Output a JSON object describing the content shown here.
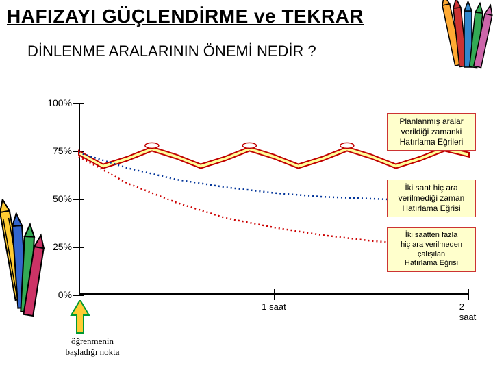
{
  "title": "HAFIZAYI GÜÇLENDİRME ve TEKRAR",
  "subtitle": "DİNLENME ARALARININ ÖNEMİ NEDİR ?",
  "chart": {
    "type": "line",
    "ylim": [
      0,
      100
    ],
    "xlim": [
      0,
      2
    ],
    "y_ticks": [
      0,
      25,
      50,
      75,
      100
    ],
    "y_labels": [
      "0%",
      "25%",
      "50%",
      "75%",
      "100%"
    ],
    "x_ticks": [
      1,
      2
    ],
    "x_labels": [
      "1 saat",
      "2 saat"
    ],
    "label_fontsize": 14,
    "background_color": "#ffffff",
    "axis_color": "#000000",
    "series": {
      "planned_breaks": {
        "color_stroke": "#c00000",
        "color_fill": "#ffff99",
        "stroke_width": 2,
        "style": "solid",
        "points": [
          [
            0.0,
            75
          ],
          [
            0.125,
            68
          ],
          [
            0.25,
            72
          ],
          [
            0.375,
            77
          ],
          [
            0.5,
            73
          ],
          [
            0.625,
            68
          ],
          [
            0.75,
            72
          ],
          [
            0.875,
            77
          ],
          [
            1.0,
            73
          ],
          [
            1.125,
            68
          ],
          [
            1.25,
            72
          ],
          [
            1.375,
            77
          ],
          [
            1.5,
            73
          ],
          [
            1.625,
            68
          ],
          [
            1.75,
            72
          ],
          [
            1.875,
            77
          ],
          [
            2.0,
            74
          ]
        ],
        "markers": [
          [
            0.375,
            77
          ],
          [
            0.875,
            77
          ],
          [
            1.375,
            77
          ],
          [
            1.875,
            77
          ]
        ]
      },
      "no_break_curve": {
        "color": "#003399",
        "stroke_width": 2,
        "style": "dotted",
        "points": [
          [
            0.0,
            74
          ],
          [
            0.25,
            66
          ],
          [
            0.5,
            60
          ],
          [
            0.75,
            56
          ],
          [
            1.0,
            53
          ],
          [
            1.25,
            51
          ],
          [
            1.5,
            50
          ],
          [
            1.75,
            49
          ],
          [
            2.0,
            48
          ]
        ]
      },
      "over_two_hours_curve": {
        "color": "#cc0000",
        "stroke_width": 2,
        "style": "dotted",
        "points": [
          [
            0.0,
            72
          ],
          [
            0.25,
            58
          ],
          [
            0.5,
            48
          ],
          [
            0.75,
            40
          ],
          [
            1.0,
            35
          ],
          [
            1.25,
            31
          ],
          [
            1.5,
            28
          ],
          [
            1.75,
            26
          ],
          [
            2.0,
            25
          ]
        ]
      }
    },
    "annotations": {
      "planned": {
        "text_l1": "Planlanmış aralar",
        "text_l2": "verildiği zamanki",
        "text_l3": "Hatırlama Eğrileri",
        "bg": "#ffffcc",
        "border": "#cc3333"
      },
      "nobreak": {
        "text_l1": "İki saat hiç ara",
        "text_l2": "verilmediği zaman",
        "text_l3": "Hatırlama Eğrisi",
        "bg": "#ffffcc",
        "border": "#cc3333"
      },
      "overtwo": {
        "text_l1": "İki saatten fazla",
        "text_l2": "hiç ara verilmeden",
        "text_l3": "çalışılan",
        "text_l4": "Hatırlama Eğrisi",
        "bg": "#ffffcc",
        "border": "#cc3333"
      },
      "start_point": {
        "text_l1": "öğrenmenin",
        "text_l2": "başladığı nokta"
      }
    }
  },
  "decor": {
    "crayon_colors_left": [
      "#ffcc33",
      "#3366cc",
      "#33aa55",
      "#cc3366",
      "#aa66cc"
    ],
    "crayon_colors_right": [
      "#ffaa33",
      "#cc3333",
      "#3388cc",
      "#33aa55",
      "#cc66aa",
      "#3366cc"
    ],
    "arrow_color": "#ffcc33",
    "arrow_border": "#009933"
  }
}
